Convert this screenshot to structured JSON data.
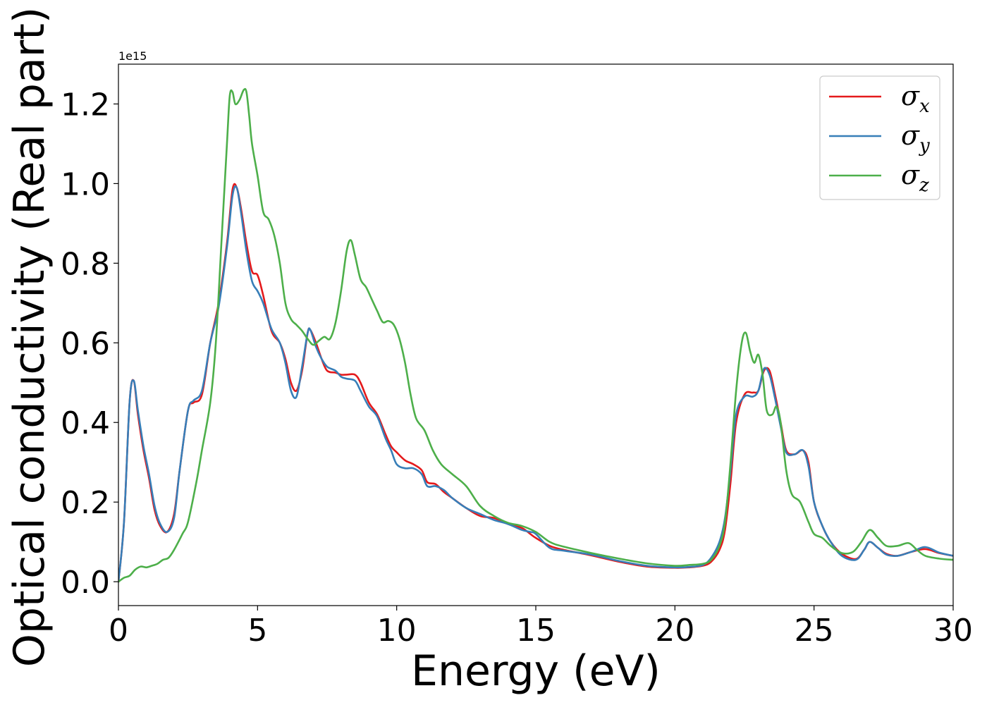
{
  "chart_data": {
    "type": "line",
    "xlabel": "Energy (eV)",
    "ylabel": "Optical conductivity (Real part)",
    "offset_text": "1e15",
    "y_scale": 1000000000000000.0,
    "xlim": [
      0,
      30
    ],
    "ylim": [
      -0.06,
      1.3
    ],
    "xticks": [
      0,
      5,
      10,
      15,
      20,
      25,
      30
    ],
    "xtick_labels": [
      "0",
      "5",
      "10",
      "15",
      "20",
      "25",
      "30"
    ],
    "yticks": [
      0.0,
      0.2,
      0.4,
      0.6,
      0.8,
      1.0,
      1.2
    ],
    "ytick_labels": [
      "0.0",
      "0.2",
      "0.4",
      "0.6",
      "0.8",
      "1.0",
      "1.2"
    ],
    "grid": false,
    "legend_position": "top-right",
    "series": [
      {
        "name": "x",
        "legend_symbol": "σ",
        "color": "#e41a1c",
        "x": [
          0,
          0.2,
          0.4,
          0.55,
          0.7,
          0.9,
          1.1,
          1.3,
          1.5,
          1.75,
          2.0,
          2.2,
          2.5,
          2.7,
          3.0,
          3.3,
          3.6,
          3.9,
          4.1,
          4.25,
          4.4,
          4.6,
          4.8,
          5.0,
          5.2,
          5.5,
          5.8,
          6.0,
          6.2,
          6.4,
          6.6,
          6.8,
          6.9,
          7.1,
          7.3,
          7.5,
          7.8,
          8.0,
          8.2,
          8.5,
          8.7,
          9.0,
          9.3,
          9.6,
          9.8,
          10.0,
          10.3,
          10.6,
          10.9,
          11.1,
          11.4,
          11.7,
          12.0,
          12.5,
          13.0,
          13.5,
          14.0,
          14.5,
          14.8,
          15.0,
          15.5,
          16.0,
          17.0,
          18.0,
          19.0,
          20.0,
          20.5,
          21.0,
          21.3,
          21.6,
          21.8,
          22.0,
          22.2,
          22.5,
          22.8,
          23.0,
          23.2,
          23.4,
          23.6,
          23.8,
          24.0,
          24.3,
          24.6,
          24.8,
          25.0,
          25.3,
          25.6,
          26.0,
          26.5,
          26.8,
          27.0,
          27.3,
          27.6,
          28.0,
          28.5,
          29.0,
          29.5,
          30.0
        ],
        "y": [
          0.0,
          0.15,
          0.45,
          0.505,
          0.42,
          0.33,
          0.26,
          0.18,
          0.14,
          0.125,
          0.17,
          0.28,
          0.43,
          0.45,
          0.47,
          0.6,
          0.7,
          0.85,
          0.985,
          0.99,
          0.94,
          0.85,
          0.78,
          0.77,
          0.72,
          0.63,
          0.6,
          0.56,
          0.5,
          0.48,
          0.53,
          0.625,
          0.632,
          0.6,
          0.56,
          0.53,
          0.525,
          0.52,
          0.52,
          0.52,
          0.5,
          0.45,
          0.42,
          0.37,
          0.34,
          0.325,
          0.305,
          0.295,
          0.28,
          0.25,
          0.245,
          0.225,
          0.21,
          0.185,
          0.165,
          0.16,
          0.145,
          0.135,
          0.12,
          0.11,
          0.09,
          0.08,
          0.066,
          0.05,
          0.038,
          0.035,
          0.036,
          0.04,
          0.05,
          0.08,
          0.13,
          0.25,
          0.4,
          0.47,
          0.475,
          0.48,
          0.53,
          0.53,
          0.47,
          0.4,
          0.33,
          0.32,
          0.33,
          0.3,
          0.2,
          0.14,
          0.1,
          0.07,
          0.057,
          0.08,
          0.1,
          0.085,
          0.07,
          0.065,
          0.075,
          0.082,
          0.072,
          0.065
        ]
      },
      {
        "name": "y",
        "legend_symbol": "σ",
        "color": "#377eb8",
        "x": [
          0,
          0.2,
          0.4,
          0.55,
          0.7,
          0.9,
          1.1,
          1.3,
          1.5,
          1.75,
          2.0,
          2.2,
          2.5,
          2.7,
          3.0,
          3.3,
          3.6,
          3.9,
          4.1,
          4.25,
          4.4,
          4.6,
          4.8,
          5.0,
          5.2,
          5.5,
          5.8,
          6.0,
          6.2,
          6.4,
          6.6,
          6.8,
          6.9,
          7.1,
          7.3,
          7.5,
          7.8,
          8.0,
          8.2,
          8.5,
          8.7,
          9.0,
          9.3,
          9.6,
          9.8,
          10.0,
          10.3,
          10.6,
          10.9,
          11.1,
          11.4,
          11.7,
          12.0,
          12.5,
          13.0,
          13.5,
          14.0,
          14.5,
          14.8,
          15.0,
          15.5,
          16.0,
          17.0,
          18.0,
          19.0,
          20.0,
          20.5,
          21.0,
          21.3,
          21.6,
          21.8,
          22.0,
          22.2,
          22.5,
          22.8,
          23.0,
          23.2,
          23.4,
          23.6,
          23.8,
          24.0,
          24.3,
          24.6,
          24.8,
          25.0,
          25.3,
          25.6,
          26.0,
          26.5,
          26.8,
          27.0,
          27.3,
          27.6,
          28.0,
          28.5,
          29.0,
          29.5,
          30.0
        ],
        "y": [
          0.0,
          0.15,
          0.45,
          0.505,
          0.43,
          0.34,
          0.27,
          0.19,
          0.145,
          0.125,
          0.16,
          0.28,
          0.43,
          0.455,
          0.48,
          0.6,
          0.69,
          0.84,
          0.97,
          0.99,
          0.93,
          0.83,
          0.755,
          0.73,
          0.7,
          0.635,
          0.6,
          0.55,
          0.48,
          0.465,
          0.54,
          0.625,
          0.632,
          0.59,
          0.56,
          0.54,
          0.53,
          0.515,
          0.51,
          0.505,
          0.48,
          0.44,
          0.415,
          0.36,
          0.33,
          0.295,
          0.285,
          0.285,
          0.27,
          0.24,
          0.24,
          0.23,
          0.21,
          0.185,
          0.17,
          0.155,
          0.145,
          0.13,
          0.125,
          0.12,
          0.085,
          0.078,
          0.068,
          0.052,
          0.04,
          0.036,
          0.037,
          0.042,
          0.06,
          0.1,
          0.16,
          0.28,
          0.42,
          0.465,
          0.465,
          0.48,
          0.535,
          0.52,
          0.46,
          0.39,
          0.325,
          0.32,
          0.33,
          0.29,
          0.2,
          0.14,
          0.1,
          0.065,
          0.055,
          0.08,
          0.1,
          0.085,
          0.068,
          0.065,
          0.075,
          0.087,
          0.073,
          0.065
        ]
      },
      {
        "name": "z",
        "legend_symbol": "σ",
        "color": "#4daf4a",
        "x": [
          0,
          0.2,
          0.4,
          0.6,
          0.8,
          1.0,
          1.2,
          1.4,
          1.6,
          1.8,
          2.0,
          2.3,
          2.5,
          2.8,
          3.0,
          3.3,
          3.5,
          3.7,
          3.9,
          4.0,
          4.1,
          4.2,
          4.35,
          4.5,
          4.6,
          4.7,
          4.8,
          5.0,
          5.2,
          5.4,
          5.6,
          5.8,
          6.0,
          6.2,
          6.4,
          6.6,
          6.8,
          7.0,
          7.2,
          7.4,
          7.6,
          7.8,
          8.0,
          8.2,
          8.35,
          8.5,
          8.7,
          8.9,
          9.1,
          9.3,
          9.5,
          9.7,
          9.9,
          10.1,
          10.3,
          10.5,
          10.7,
          11.0,
          11.3,
          11.6,
          12.0,
          12.5,
          13.0,
          13.5,
          14.0,
          14.5,
          15.0,
          15.5,
          16.0,
          17.0,
          18.0,
          19.0,
          20.0,
          20.5,
          21.0,
          21.3,
          21.6,
          21.8,
          22.0,
          22.2,
          22.4,
          22.55,
          22.7,
          22.85,
          23.0,
          23.15,
          23.3,
          23.5,
          23.65,
          23.8,
          24.0,
          24.2,
          24.5,
          24.8,
          25.0,
          25.3,
          25.6,
          26.0,
          26.4,
          26.7,
          27.0,
          27.3,
          27.6,
          28.0,
          28.4,
          28.7,
          29.0,
          29.5,
          30.0
        ],
        "y": [
          0.0,
          0.01,
          0.015,
          0.03,
          0.038,
          0.036,
          0.04,
          0.045,
          0.055,
          0.06,
          0.08,
          0.12,
          0.15,
          0.25,
          0.33,
          0.45,
          0.6,
          0.85,
          1.1,
          1.22,
          1.23,
          1.2,
          1.21,
          1.235,
          1.23,
          1.17,
          1.1,
          1.02,
          0.93,
          0.91,
          0.87,
          0.8,
          0.7,
          0.66,
          0.645,
          0.63,
          0.61,
          0.595,
          0.605,
          0.615,
          0.61,
          0.65,
          0.73,
          0.83,
          0.858,
          0.82,
          0.76,
          0.74,
          0.71,
          0.68,
          0.652,
          0.655,
          0.645,
          0.61,
          0.55,
          0.47,
          0.41,
          0.38,
          0.33,
          0.295,
          0.27,
          0.24,
          0.19,
          0.165,
          0.148,
          0.14,
          0.125,
          0.1,
          0.088,
          0.072,
          0.058,
          0.046,
          0.04,
          0.042,
          0.045,
          0.055,
          0.09,
          0.15,
          0.3,
          0.48,
          0.6,
          0.625,
          0.58,
          0.55,
          0.57,
          0.52,
          0.43,
          0.42,
          0.44,
          0.4,
          0.28,
          0.22,
          0.2,
          0.15,
          0.12,
          0.11,
          0.09,
          0.072,
          0.075,
          0.1,
          0.13,
          0.11,
          0.09,
          0.09,
          0.097,
          0.08,
          0.065,
          0.058,
          0.055
        ]
      }
    ]
  }
}
